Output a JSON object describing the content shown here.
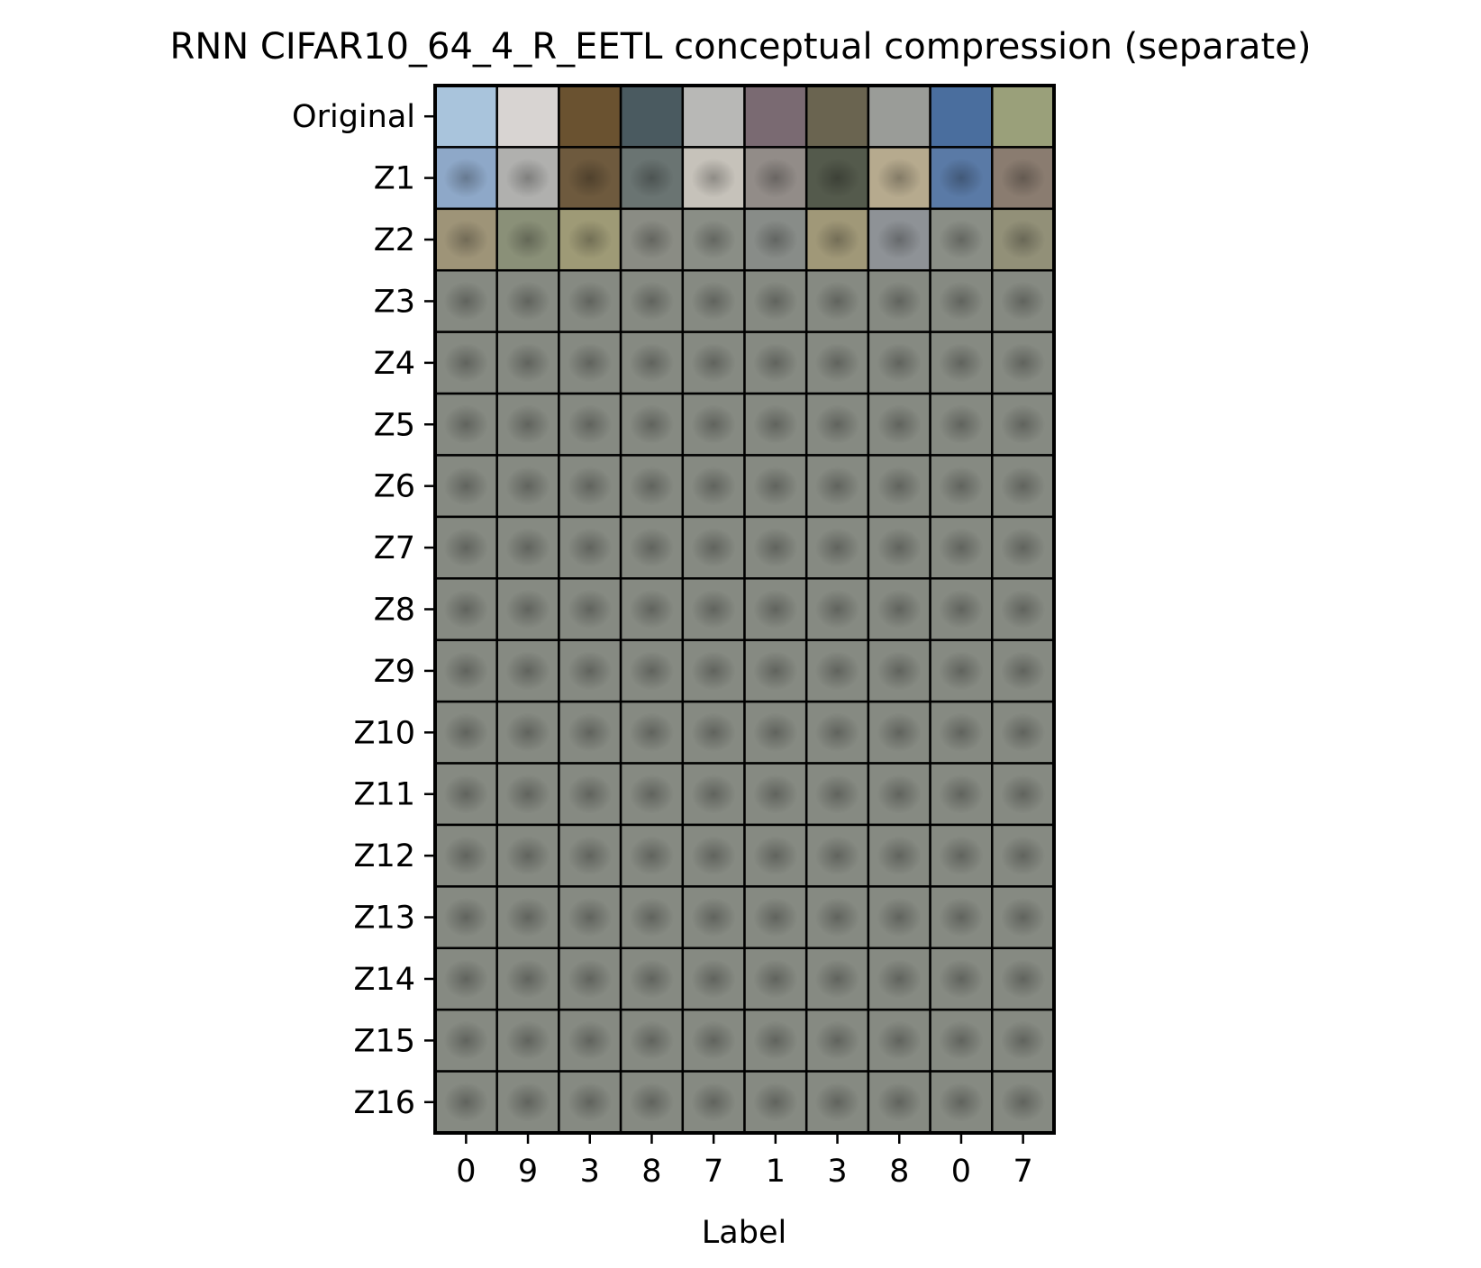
{
  "chart_data": {
    "type": "image-grid",
    "title": "RNN CIFAR10_64_4_R_EETL conceptual compression (separate)",
    "xlabel": "Label",
    "ylabel": "",
    "row_labels": [
      "Original",
      "Z1",
      "Z2",
      "Z3",
      "Z4",
      "Z5",
      "Z6",
      "Z7",
      "Z8",
      "Z9",
      "Z10",
      "Z11",
      "Z12",
      "Z13",
      "Z14",
      "Z15",
      "Z16"
    ],
    "column_labels": [
      "0",
      "9",
      "3",
      "8",
      "7",
      "1",
      "3",
      "8",
      "0",
      "7"
    ],
    "colors": {
      "grid_line": "#000000",
      "residual_gray": "#868a82",
      "original_tiles": [
        "#a9c4dc",
        "#d8d4d2",
        "#6a5230",
        "#4a5a60",
        "#b8b8b6",
        "#7a6a72",
        "#6a6450",
        "#9a9c98",
        "#4a6e9e",
        "#9aa07a"
      ],
      "z1_tiles": [
        "#8ea8c8",
        "#b0b0ae",
        "#6e5a3e",
        "#6a7472",
        "#c6c2ba",
        "#928c88",
        "#545a4c",
        "#b6aa8e",
        "#5a7aa6",
        "#8a7c70"
      ],
      "z2_tiles": [
        "#9e9478",
        "#8a9078",
        "#9e9a76",
        "#8a8c84",
        "#8a8e86",
        "#888c88",
        "#a09878",
        "#8e9296",
        "#8a8e86",
        "#929078"
      ]
    }
  }
}
